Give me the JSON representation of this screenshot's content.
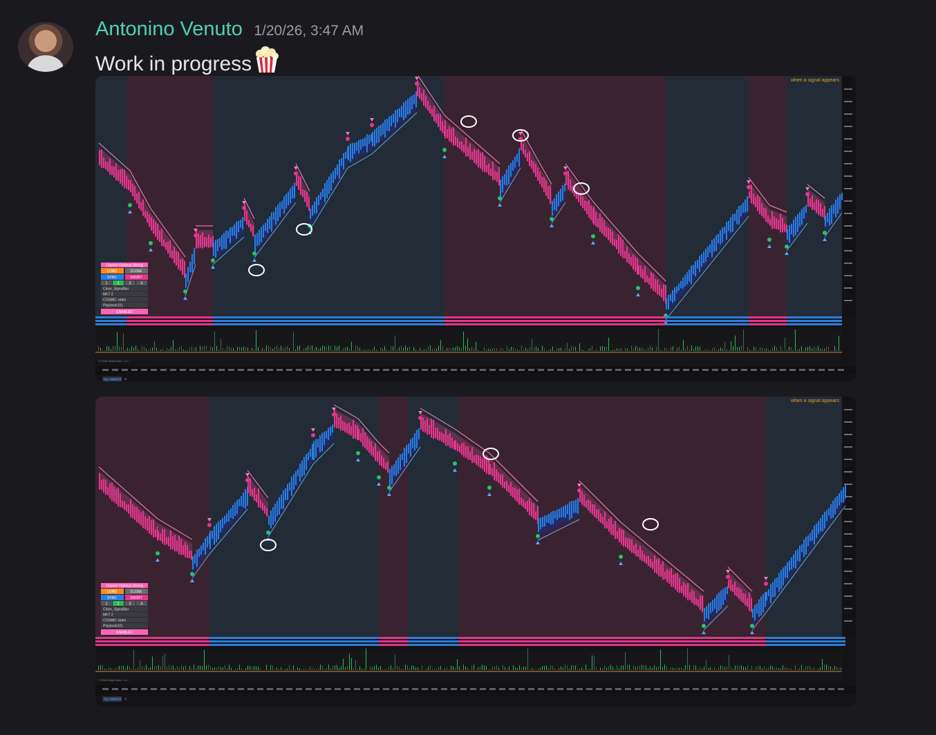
{
  "message": {
    "author": "Antonino Venuto",
    "timestamp": "1/20/26, 3:47 AM",
    "text": "Work in progress",
    "emoji_icon": "popcorn-icon"
  },
  "colors": {
    "author": "#51d0b5",
    "bull": "#2a7fe0",
    "bear": "#e8358f",
    "signal_label": "#e8a21c",
    "bg_dark": "#1a1a1e"
  },
  "screenshots": [
    {
      "signal_label": "when a signal appears",
      "tab_label": "NQ MAR26",
      "footer_label": "© 2026 NinjaTrader, LLC",
      "panel": {
        "title": "Captain Optimus Strong",
        "long": "LONG",
        "close": "CLOSE",
        "sync": "SYNC",
        "short": "SHORT",
        "counts": [
          "1",
          "2",
          "3",
          "4"
        ],
        "dropdown1": "Close_SignalBar",
        "mkt": "MKT",
        "mkt_qty": "2",
        "cosmic": "COSMIC video",
        "playbook": "Playbook101",
        "status": "ENABLED"
      }
    },
    {
      "signal_label": "when a signal appears",
      "tab_label": "NQ MAR26",
      "footer_label": "© 2026 NinjaTrader, LLC",
      "panel": {
        "title": "Captain Optimus Strong",
        "long": "LONG",
        "close": "CLOSE",
        "sync": "SYNC",
        "short": "SHORT",
        "counts": [
          "1",
          "2",
          "3",
          "4"
        ],
        "dropdown1": "Close_SignalBar",
        "mkt": "MKT",
        "mkt_qty": "2",
        "cosmic": "COSMIC video",
        "playbook": "Playbook101",
        "status": "ENABLED"
      }
    }
  ]
}
